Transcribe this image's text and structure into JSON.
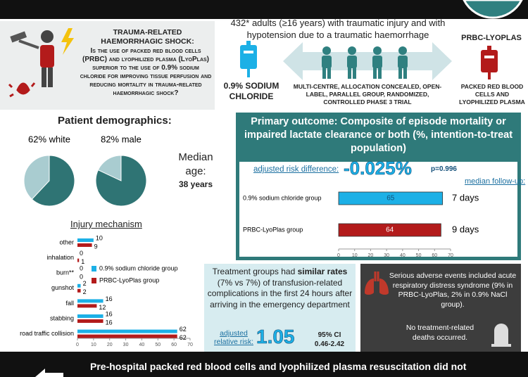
{
  "question": {
    "heading": "TRAUMA-RELATED HAEMORRHAGIC SHOCK:",
    "text": "Is the use of packed red blood cells (PRBC) and lyophilized plasma (LyoPlas) superior to the use of 0.9% sodium chloride for improving tissue perfusion and reducing mortality in trauma-related haemorrhagic shock?"
  },
  "design": {
    "population": "432* adults (≥16 years) with traumatic injury and with hypotension due to a traumatic haemorrhage",
    "control": "0.9% SODIUM CHLORIDE",
    "intervention_name": "PRBC-LYOPLAS",
    "intervention_desc": "PACKED RED BLOOD CELLS AND LYOPHILIZED PLASMA",
    "trial": "MULTI-CENTRE, ALLOCATION CONCEALED, OPEN-LABEL, PARALLEL GROUP, RANDOMIZED, CONTROLLED PHASE 3 TRIAL"
  },
  "demographics": {
    "title": "Patient demographics:",
    "pies": [
      {
        "label": "62% white",
        "value": 62,
        "color": "#2f7474",
        "rest_color": "#a9ccd0"
      },
      {
        "label": "82% male",
        "value": 82,
        "color": "#2f7474",
        "rest_color": "#a9ccd0"
      }
    ],
    "age_label": "Median age:",
    "age_value": "38 years"
  },
  "chart_data": [
    {
      "type": "bar",
      "orientation": "horizontal",
      "title": "Injury mechanism",
      "categories": [
        "other",
        "inhalation",
        "burn**",
        "gunshot",
        "fall",
        "stabbing",
        "road traffic collision"
      ],
      "series": [
        {
          "name": "0.9% sodium chloride group",
          "color": "#1cb0e6",
          "values": [
            10,
            0,
            0,
            2,
            16,
            16,
            62
          ]
        },
        {
          "name": "PRBC-LyoPlas group",
          "color": "#b31b1b",
          "values": [
            9,
            1,
            0,
            2,
            12,
            16,
            62
          ]
        }
      ],
      "xlim": [
        0,
        70
      ],
      "xticks": [
        0,
        10,
        20,
        30,
        40,
        50,
        60,
        70
      ]
    },
    {
      "type": "bar",
      "orientation": "horizontal",
      "title": "Primary outcome: Composite of episode mortality or impaired lactate clearance or both (%, intention-to-treat population)",
      "categories": [
        "0.9% sodium chloride group",
        "PRBC-LyoPlas group"
      ],
      "values": [
        65,
        64
      ],
      "colors": [
        "#1cb0e6",
        "#b31b1b"
      ],
      "xlim": [
        0,
        70
      ],
      "xticks": [
        0,
        10,
        20,
        30,
        40,
        50,
        60,
        70
      ],
      "risk_label": "adjusted risk difference:",
      "risk_value": "-0.025%",
      "p_value": "p=0.996",
      "follow_up_title": "median follow-up:",
      "follow_up": [
        "7 days",
        "9 days"
      ]
    }
  ],
  "safety": {
    "lead": "Treatment groups had",
    "emphasis": "similar rates",
    "rest": "(7% vs 7%) of transfusion-related complications in the first 24 hours after arriving in the emergency department",
    "rr_label": "adjusted relative risk:",
    "rr_value": "1.05",
    "ci_label": "95% CI",
    "ci_value": "0.46-2.42"
  },
  "adverse": {
    "text": "Serious adverse events included acute respiratory distress syndrome (9% in PRBC-LyoPlas, 2% in 0.9% NaCl group).",
    "deaths": "No treatment-related deaths occurred."
  },
  "conclusion": "Pre-hospital packed red blood cells and lyophilized plasma resuscitation did not"
}
